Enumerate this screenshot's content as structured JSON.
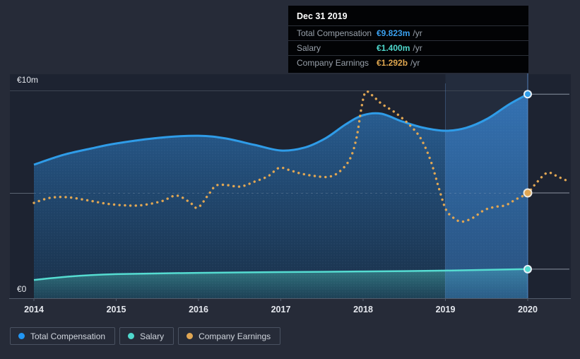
{
  "tooltip": {
    "title": "Dec 31 2019",
    "rows": [
      {
        "label": "Total Compensation",
        "value": "€9.823m",
        "unit": "/yr",
        "color": "#3aa0ef"
      },
      {
        "label": "Salary",
        "value": "€1.400m",
        "unit": "/yr",
        "color": "#4fd8cd"
      },
      {
        "label": "Company Earnings",
        "value": "€1.292b",
        "unit": "/yr",
        "color": "#dfa64f"
      }
    ]
  },
  "legend": {
    "items": [
      {
        "label": "Total Compensation",
        "color": "#2196f3"
      },
      {
        "label": "Salary",
        "color": "#4fd8cd"
      },
      {
        "label": "Company Earnings",
        "color": "#e0a653"
      }
    ]
  },
  "chart_data": {
    "type": "line",
    "title": "",
    "x_ticks": [
      "2014",
      "2015",
      "2016",
      "2017",
      "2018",
      "2019",
      "2020"
    ],
    "x_range": [
      2014,
      2020.52
    ],
    "y_axis_compensation": {
      "labels": [
        "€0",
        "€10m"
      ],
      "ylim": [
        0,
        10
      ],
      "unit": "€m"
    },
    "y_axis_earnings": {
      "ylim": [
        0,
        2.55
      ],
      "unit": "€b"
    },
    "grid": "horizontal",
    "legend_position": "bottom-left",
    "hover": {
      "x_label": "Dec 31 2019",
      "highlight_band": [
        2019,
        2020
      ]
    },
    "series": [
      {
        "name": "Total Compensation",
        "color": "#2f9ce8",
        "style": "solid",
        "area": true,
        "axis": "compensation",
        "unit": "€m",
        "points": [
          [
            2014,
            6.43
          ],
          [
            2014.36,
            6.9
          ],
          [
            2014.7,
            7.21
          ],
          [
            2015,
            7.45
          ],
          [
            2015.52,
            7.72
          ],
          [
            2016,
            7.82
          ],
          [
            2016.33,
            7.69
          ],
          [
            2016.68,
            7.38
          ],
          [
            2017,
            7.11
          ],
          [
            2017.28,
            7.24
          ],
          [
            2017.54,
            7.69
          ],
          [
            2017.79,
            8.37
          ],
          [
            2018,
            8.81
          ],
          [
            2018.22,
            8.88
          ],
          [
            2018.48,
            8.5
          ],
          [
            2018.74,
            8.2
          ],
          [
            2019,
            8.06
          ],
          [
            2019.25,
            8.2
          ],
          [
            2019.51,
            8.64
          ],
          [
            2019.77,
            9.32
          ],
          [
            2020,
            9.823
          ]
        ],
        "end_marker": [
          2020,
          9.823
        ]
      },
      {
        "name": "Salary",
        "color": "#55dcd1",
        "style": "solid",
        "area": true,
        "axis": "compensation",
        "unit": "€m",
        "points": [
          [
            2014,
            0.88
          ],
          [
            2014.45,
            1.05
          ],
          [
            2015,
            1.16
          ],
          [
            2016,
            1.22
          ],
          [
            2017,
            1.26
          ],
          [
            2018,
            1.29
          ],
          [
            2019,
            1.33
          ],
          [
            2020,
            1.4
          ]
        ],
        "end_marker": [
          2020,
          1.4
        ]
      },
      {
        "name": "Company Earnings",
        "color": "#e0a653",
        "style": "dotted",
        "area": false,
        "axis": "earnings",
        "unit": "€b",
        "points": [
          [
            2014,
            1.17
          ],
          [
            2014.19,
            1.23
          ],
          [
            2014.4,
            1.24
          ],
          [
            2014.66,
            1.2
          ],
          [
            2014.88,
            1.16
          ],
          [
            2015.09,
            1.14
          ],
          [
            2015.3,
            1.14
          ],
          [
            2015.55,
            1.19
          ],
          [
            2015.73,
            1.26
          ],
          [
            2015.89,
            1.18
          ],
          [
            2015.99,
            1.11
          ],
          [
            2016.12,
            1.27
          ],
          [
            2016.21,
            1.38
          ],
          [
            2016.33,
            1.39
          ],
          [
            2016.51,
            1.37
          ],
          [
            2016.68,
            1.43
          ],
          [
            2016.85,
            1.5
          ],
          [
            2016.98,
            1.6
          ],
          [
            2017.11,
            1.57
          ],
          [
            2017.24,
            1.53
          ],
          [
            2017.41,
            1.5
          ],
          [
            2017.58,
            1.49
          ],
          [
            2017.71,
            1.55
          ],
          [
            2017.84,
            1.71
          ],
          [
            2017.92,
            1.97
          ],
          [
            2017.98,
            2.34
          ],
          [
            2018.03,
            2.53
          ],
          [
            2018.11,
            2.49
          ],
          [
            2018.22,
            2.39
          ],
          [
            2018.4,
            2.27
          ],
          [
            2018.57,
            2.12
          ],
          [
            2018.7,
            1.96
          ],
          [
            2018.82,
            1.69
          ],
          [
            2018.93,
            1.32
          ],
          [
            2019.01,
            1.08
          ],
          [
            2019.12,
            0.97
          ],
          [
            2019.21,
            0.94
          ],
          [
            2019.34,
            0.99
          ],
          [
            2019.47,
            1.08
          ],
          [
            2019.6,
            1.12
          ],
          [
            2019.73,
            1.14
          ],
          [
            2019.85,
            1.21
          ],
          [
            2020,
            1.292
          ],
          [
            2020.11,
            1.42
          ],
          [
            2020.24,
            1.54
          ],
          [
            2020.37,
            1.49
          ],
          [
            2020.48,
            1.44
          ]
        ],
        "end_marker": [
          2020,
          1.292
        ]
      }
    ]
  }
}
